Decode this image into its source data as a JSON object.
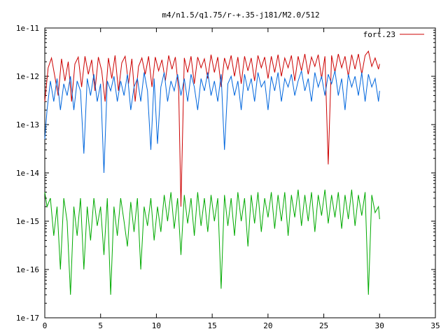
{
  "chart_data": {
    "type": "line",
    "title": "m4/n1.5/q1.75/r-+.35-j181/M2.0/512",
    "xlabel": "",
    "ylabel": "",
    "xlim": [
      0,
      35
    ],
    "ylim": [
      1e-17,
      1e-11
    ],
    "yscale": "log",
    "grid": false,
    "legend_position": "top-right",
    "x_ticks": [
      "0",
      "5",
      "10",
      "15",
      "20",
      "25",
      "30",
      "35"
    ],
    "y_ticks": [
      "1e-17",
      "1e-16",
      "1e-15",
      "1e-14",
      "1e-13",
      "1e-12",
      "1e-11"
    ],
    "colors": {
      "red": "#cc0000",
      "blue": "#0066dd",
      "green": "#00aa00"
    },
    "series": [
      {
        "name": "fort.23",
        "color": "#cc0000",
        "x": [
          0,
          0.3,
          0.6,
          0.9,
          1.2,
          1.5,
          1.8,
          2.1,
          2.4,
          2.7,
          3.0,
          3.3,
          3.6,
          3.9,
          4.2,
          4.5,
          4.8,
          5.1,
          5.4,
          5.7,
          6.0,
          6.3,
          6.6,
          6.9,
          7.2,
          7.5,
          7.8,
          8.1,
          8.4,
          8.7,
          9.0,
          9.3,
          9.6,
          9.9,
          10.2,
          10.5,
          10.8,
          11.1,
          11.4,
          11.7,
          12.0,
          12.2,
          12.5,
          12.8,
          13.1,
          13.4,
          13.7,
          14.0,
          14.3,
          14.6,
          14.9,
          15.2,
          15.5,
          15.8,
          16.1,
          16.4,
          16.7,
          17.0,
          17.3,
          17.6,
          17.9,
          18.2,
          18.5,
          18.8,
          19.1,
          19.4,
          19.7,
          20.0,
          20.3,
          20.6,
          20.9,
          21.2,
          21.5,
          21.8,
          22.1,
          22.4,
          22.7,
          23.0,
          23.3,
          23.6,
          23.9,
          24.2,
          24.5,
          24.8,
          25.1,
          25.4,
          25.7,
          26.0,
          26.3,
          26.6,
          26.9,
          27.2,
          27.5,
          27.8,
          28.1,
          28.4,
          28.7,
          29.0,
          29.3,
          29.6,
          29.9,
          30.0
        ],
        "values": [
          3e-13,
          1.5e-12,
          2.4e-12,
          1e-12,
          4e-13,
          2.3e-12,
          8e-13,
          2e-12,
          3e-13,
          1.8e-12,
          2.5e-12,
          6e-13,
          2.6e-12,
          1.1e-12,
          2.2e-12,
          5e-13,
          2.5e-12,
          1.3e-12,
          3e-13,
          2.4e-12,
          9e-13,
          2.7e-12,
          5e-13,
          1.9e-12,
          2.6e-12,
          7e-13,
          2.3e-12,
          3e-13,
          1.6e-12,
          2.4e-12,
          1.1e-12,
          2.6e-12,
          6e-13,
          2.5e-12,
          1.3e-12,
          2.2e-12,
          8e-13,
          2.7e-12,
          1.4e-12,
          2.5e-12,
          5e-13,
          2e-15,
          2.4e-12,
          1.2e-12,
          2.6e-12,
          7e-13,
          2.5e-12,
          1.5e-12,
          2.3e-12,
          9e-13,
          2.8e-12,
          1.2e-12,
          2.5e-12,
          6e-13,
          2.4e-12,
          1.4e-12,
          2.7e-12,
          1e-12,
          2.5e-12,
          7e-13,
          2.6e-12,
          1.3e-12,
          2.4e-12,
          8e-13,
          2.7e-12,
          1.5e-12,
          2.5e-12,
          9e-13,
          2.6e-12,
          1.2e-12,
          2.8e-12,
          1e-12,
          2.4e-12,
          1.5e-12,
          2.7e-12,
          8e-13,
          2.6e-12,
          1.3e-12,
          2.9e-12,
          1.1e-12,
          2.5e-12,
          1.6e-12,
          2.8e-12,
          9e-13,
          2.6e-12,
          1.5e-14,
          2.7e-12,
          1.2e-12,
          2.9e-12,
          1.5e-12,
          2.6e-12,
          1e-12,
          2.8e-12,
          1.4e-12,
          2.9e-12,
          1.1e-12,
          2.7e-12,
          3.3e-12,
          1.6e-12,
          2.4e-12,
          1.4e-12,
          1.8e-12
        ]
      },
      {
        "color": "#0066dd",
        "x": [
          0,
          0.2,
          0.5,
          0.8,
          1.1,
          1.4,
          1.7,
          2.0,
          2.3,
          2.6,
          2.9,
          3.2,
          3.5,
          3.8,
          4.1,
          4.4,
          4.7,
          5.0,
          5.3,
          5.6,
          5.9,
          6.2,
          6.5,
          6.8,
          7.1,
          7.4,
          7.7,
          8.0,
          8.3,
          8.6,
          8.9,
          9.2,
          9.5,
          9.8,
          10.1,
          10.4,
          10.7,
          11.0,
          11.3,
          11.6,
          11.9,
          12.2,
          12.5,
          12.8,
          13.1,
          13.4,
          13.7,
          14.0,
          14.3,
          14.6,
          14.9,
          15.2,
          15.5,
          15.8,
          16.1,
          16.4,
          16.7,
          17.0,
          17.3,
          17.6,
          17.9,
          18.2,
          18.5,
          18.8,
          19.1,
          19.4,
          19.7,
          20.0,
          20.3,
          20.6,
          20.9,
          21.2,
          21.5,
          21.8,
          22.1,
          22.4,
          22.7,
          23.0,
          23.3,
          23.6,
          23.9,
          24.2,
          24.5,
          24.8,
          25.1,
          25.4,
          25.7,
          26.0,
          26.3,
          26.6,
          26.9,
          27.2,
          27.5,
          27.8,
          28.1,
          28.4,
          28.7,
          29.0,
          29.3,
          29.6,
          29.9,
          30.0
        ],
        "values": [
          5e-14,
          2e-13,
          8e-13,
          3e-13,
          9e-13,
          2e-13,
          7e-13,
          4e-13,
          1e-12,
          2e-13,
          8e-13,
          5e-13,
          2.5e-14,
          9e-13,
          4e-13,
          1.1e-12,
          3e-13,
          7e-13,
          1e-14,
          8e-13,
          5e-13,
          1e-12,
          3e-13,
          8e-13,
          4e-13,
          1.1e-12,
          2e-13,
          6e-13,
          9e-13,
          3e-13,
          1.2e-12,
          5e-13,
          3e-14,
          9e-13,
          4e-14,
          6e-13,
          1.2e-12,
          3e-13,
          8e-13,
          5e-13,
          1.1e-12,
          4e-13,
          9e-13,
          3e-13,
          1.1e-12,
          6e-13,
          2e-13,
          9e-13,
          5e-13,
          1.2e-12,
          4e-13,
          8e-13,
          3e-13,
          1.1e-12,
          3e-14,
          7e-13,
          1e-12,
          4e-13,
          8e-13,
          2e-13,
          1.1e-12,
          5e-13,
          9e-13,
          3e-13,
          1.2e-12,
          6e-13,
          8e-13,
          2e-13,
          1e-12,
          5e-13,
          1.2e-12,
          3e-13,
          9e-13,
          6e-13,
          1.1e-12,
          4e-13,
          8e-13,
          1.3e-12,
          5e-13,
          9e-13,
          3e-13,
          1.2e-12,
          6e-13,
          1e-12,
          4e-13,
          1.1e-12,
          7e-13,
          1.3e-12,
          4e-13,
          9e-13,
          2e-13,
          1.1e-12,
          6e-13,
          1e-12,
          4e-13,
          1.2e-12,
          3e-13,
          1.1e-12,
          6e-13,
          9e-13,
          3e-13,
          5e-13
        ]
      },
      {
        "color": "#00aa00",
        "x": [
          0,
          0.2,
          0.5,
          0.8,
          1.1,
          1.4,
          1.7,
          2.0,
          2.3,
          2.6,
          2.9,
          3.2,
          3.5,
          3.8,
          4.1,
          4.4,
          4.7,
          5.0,
          5.3,
          5.6,
          5.9,
          6.2,
          6.5,
          6.8,
          7.1,
          7.4,
          7.7,
          8.0,
          8.3,
          8.6,
          8.9,
          9.2,
          9.5,
          9.8,
          10.1,
          10.4,
          10.7,
          11.0,
          11.3,
          11.6,
          11.9,
          12.2,
          12.5,
          12.8,
          13.1,
          13.4,
          13.7,
          14.0,
          14.3,
          14.6,
          14.9,
          15.2,
          15.5,
          15.8,
          16.1,
          16.4,
          16.7,
          17.0,
          17.3,
          17.6,
          17.9,
          18.2,
          18.5,
          18.8,
          19.1,
          19.4,
          19.7,
          20.0,
          20.3,
          20.6,
          20.9,
          21.2,
          21.5,
          21.8,
          22.1,
          22.4,
          22.7,
          23.0,
          23.3,
          23.6,
          23.9,
          24.2,
          24.5,
          24.8,
          25.1,
          25.4,
          25.7,
          26.0,
          26.3,
          26.6,
          26.9,
          27.2,
          27.5,
          27.8,
          28.1,
          28.4,
          28.7,
          29.0,
          29.3,
          29.6,
          29.9,
          30.0
        ],
        "values": [
          4e-15,
          2e-15,
          3e-15,
          5e-16,
          2e-15,
          1e-16,
          3e-15,
          1e-15,
          3e-17,
          2e-15,
          5e-16,
          3e-15,
          1e-16,
          2e-15,
          4e-16,
          3e-15,
          8e-16,
          2e-15,
          2e-16,
          3e-15,
          3e-17,
          2e-15,
          5e-16,
          3e-15,
          1e-15,
          3e-16,
          2.5e-15,
          6e-16,
          3e-15,
          1e-16,
          2e-15,
          8e-16,
          3e-15,
          4e-16,
          2e-15,
          6e-16,
          3.5e-15,
          1e-15,
          4e-15,
          7e-16,
          3e-15,
          2e-16,
          3.5e-15,
          9e-16,
          3e-15,
          5e-16,
          4e-15,
          8e-16,
          3e-15,
          6e-16,
          3.5e-15,
          1e-15,
          3e-15,
          4e-17,
          3.5e-15,
          8e-16,
          3e-15,
          5e-16,
          4e-15,
          1e-15,
          3e-15,
          3e-16,
          3.5e-15,
          9e-16,
          4e-15,
          6e-16,
          3e-15,
          1.2e-15,
          4e-15,
          7e-16,
          3.5e-15,
          1e-15,
          4e-15,
          5e-16,
          3.5e-15,
          1.2e-15,
          4.5e-15,
          8e-16,
          3.5e-15,
          1e-15,
          4e-15,
          6e-16,
          3.5e-15,
          1.3e-15,
          4.5e-15,
          9e-16,
          3.5e-15,
          1.2e-15,
          4e-15,
          7e-16,
          3.5e-15,
          1.1e-15,
          4.5e-15,
          8e-16,
          3.5e-15,
          1.3e-15,
          4e-15,
          3e-17,
          3.5e-15,
          1.5e-15,
          2e-15,
          1.1e-15
        ]
      }
    ]
  }
}
